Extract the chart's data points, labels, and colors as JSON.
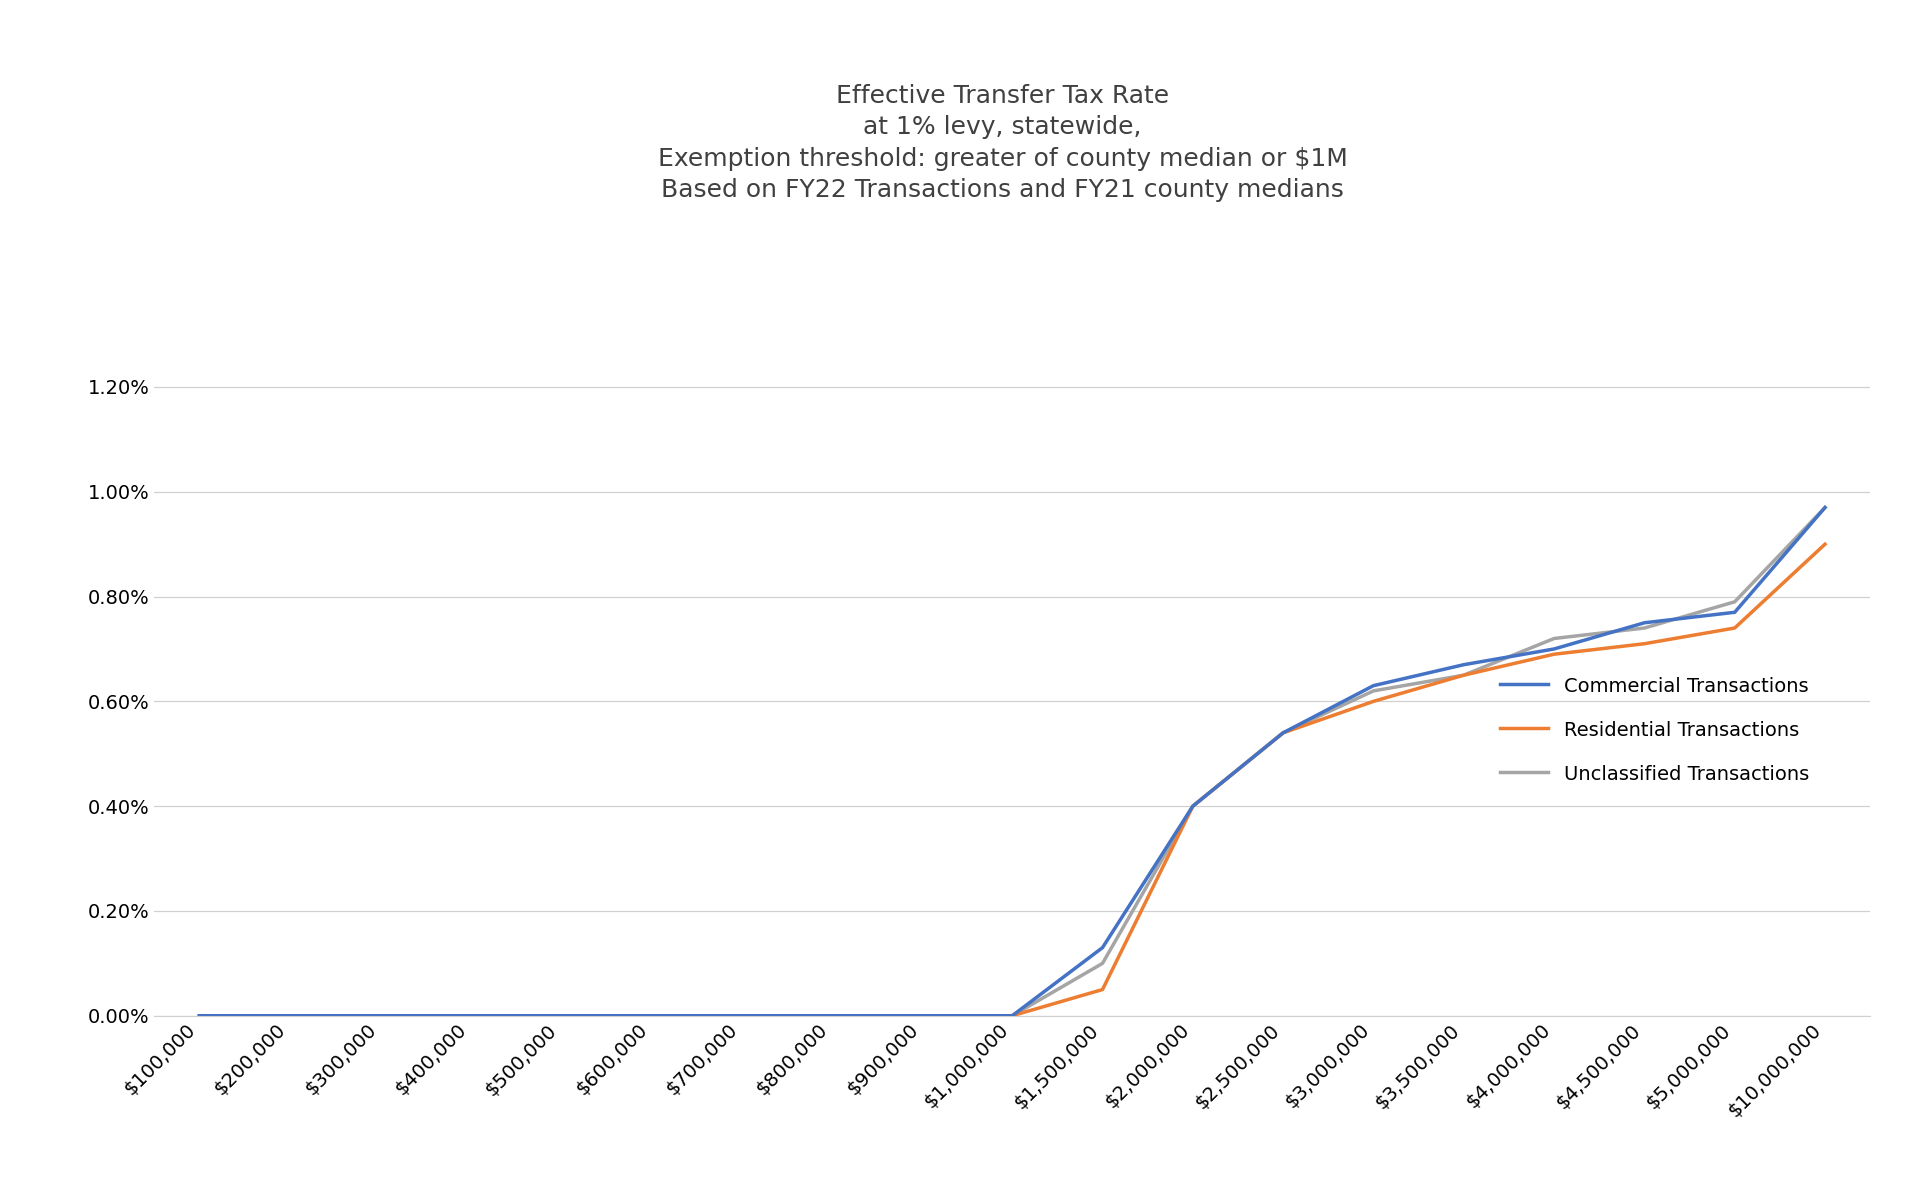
{
  "title_line1": "Effective Transfer Tax Rate",
  "title_line2": "at 1% levy, statewide,",
  "title_line3": "Exemption threshold: greater of county median or $1M",
  "title_line4": "Based on FY22 Transactions and FY21 county medians",
  "x_labels": [
    "$100,000",
    "$200,000",
    "$300,000",
    "$400,000",
    "$500,000",
    "$600,000",
    "$700,000",
    "$800,000",
    "$900,000",
    "$1,000,000",
    "$1,500,000",
    "$2,000,000",
    "$2,500,000",
    "$3,000,000",
    "$3,500,000",
    "$4,000,000",
    "$4,500,000",
    "$5,000,000",
    "$10,000,000"
  ],
  "x_values": [
    100000,
    200000,
    300000,
    400000,
    500000,
    600000,
    700000,
    800000,
    900000,
    1000000,
    1500000,
    2000000,
    2500000,
    3000000,
    3500000,
    4000000,
    4500000,
    5000000,
    10000000
  ],
  "commercial": [
    0.0,
    0.0,
    0.0,
    0.0,
    0.0,
    0.0,
    0.0,
    0.0,
    0.0,
    0.0,
    0.0013,
    0.004,
    0.0054,
    0.0063,
    0.0067,
    0.007,
    0.0075,
    0.0077,
    0.0097
  ],
  "residential": [
    0.0,
    0.0,
    0.0,
    0.0,
    0.0,
    0.0,
    0.0,
    0.0,
    0.0,
    0.0,
    0.0005,
    0.004,
    0.0054,
    0.006,
    0.0065,
    0.0069,
    0.0071,
    0.0074,
    0.009
  ],
  "unclassified": [
    0.0,
    0.0,
    0.0,
    0.0,
    0.0,
    0.0,
    0.0,
    0.0,
    0.0,
    0.0,
    0.001,
    0.004,
    0.0054,
    0.0062,
    0.0065,
    0.0072,
    0.0074,
    0.0079,
    0.0097
  ],
  "commercial_color": "#4472C4",
  "residential_color": "#ED7D31",
  "unclassified_color": "#A5A5A5",
  "background_color": "#FFFFFF",
  "legend_labels": [
    "Commercial Transactions",
    "Residential Transactions",
    "Unclassified Transactions"
  ],
  "ylim": [
    0.0,
    0.013
  ],
  "yticks": [
    0.0,
    0.002,
    0.004,
    0.006,
    0.008,
    0.01,
    0.012
  ],
  "line_width": 2.5,
  "title_fontsize": 18,
  "tick_fontsize": 14,
  "legend_fontsize": 14
}
